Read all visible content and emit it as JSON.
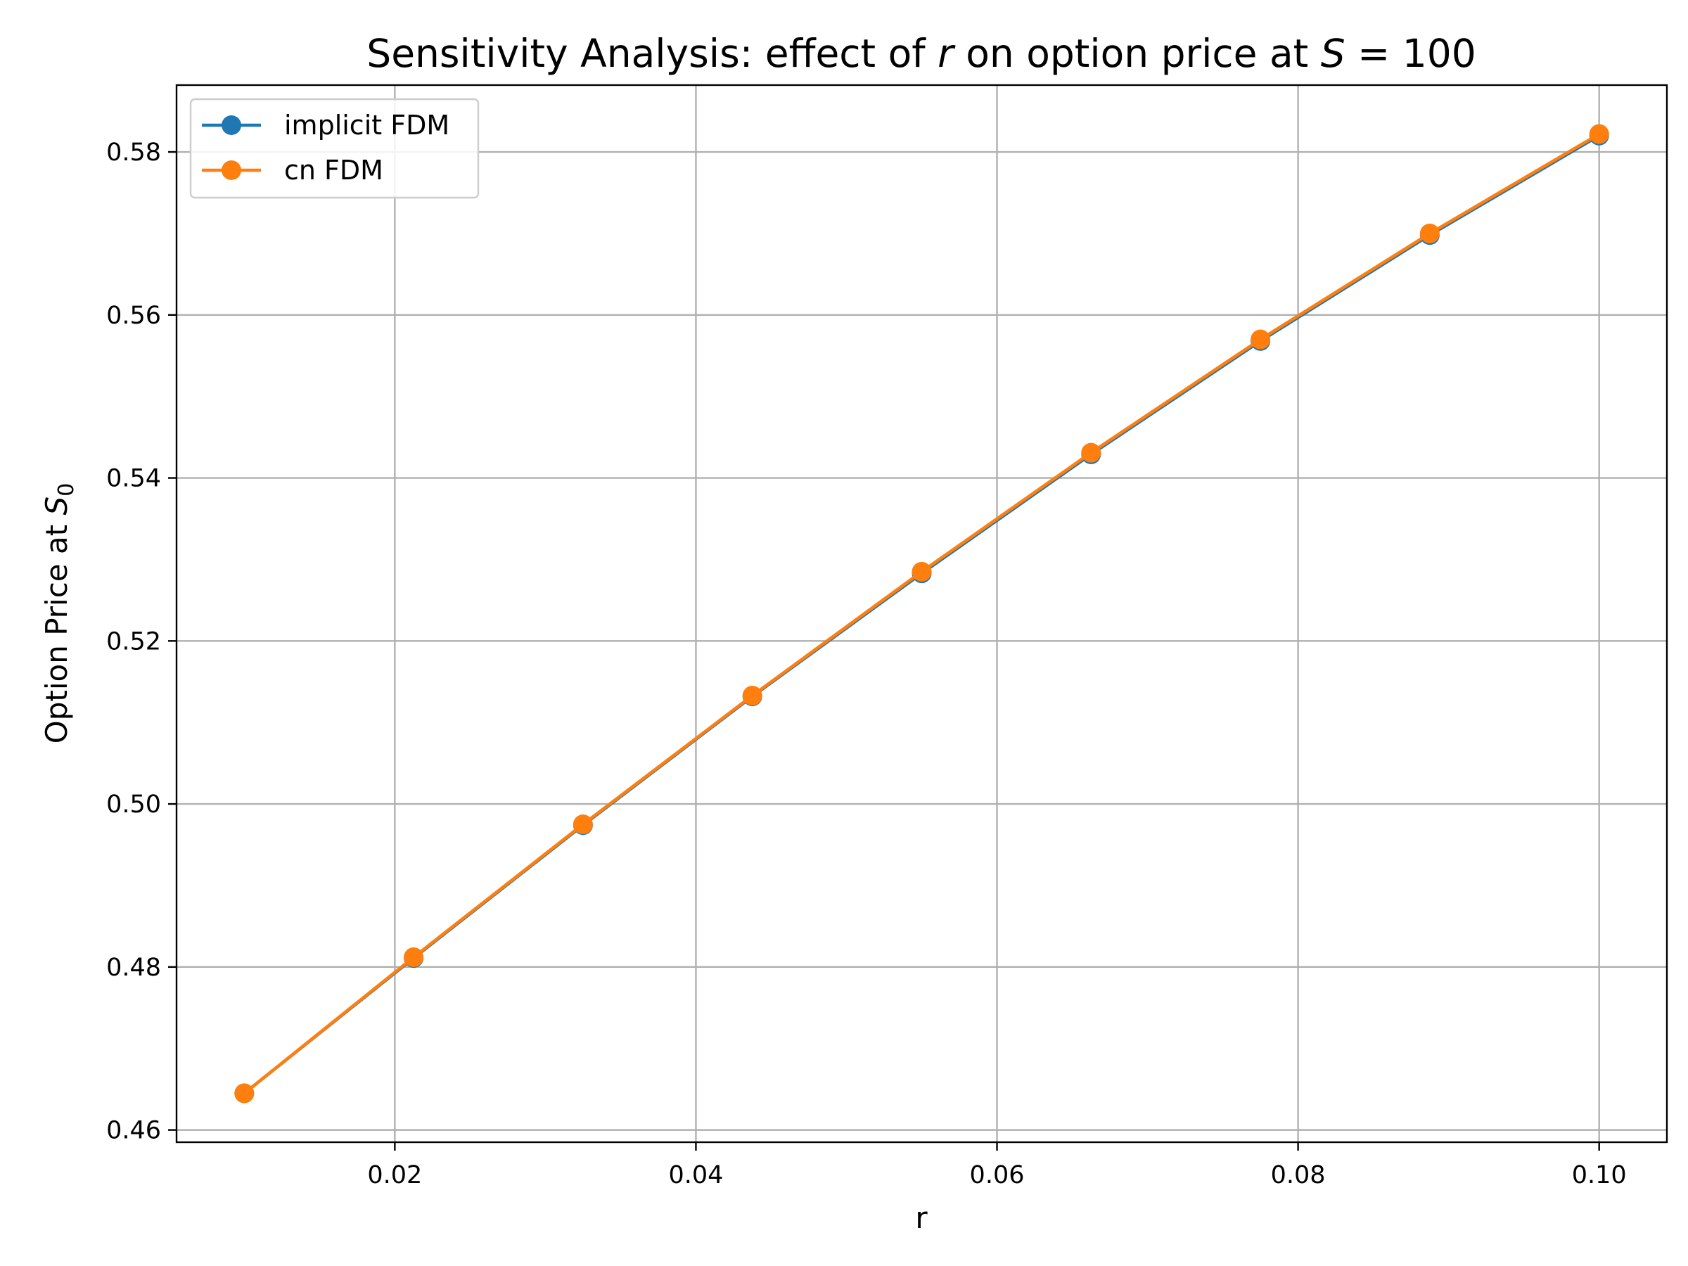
{
  "chart_data": {
    "type": "line",
    "title": {
      "prefix": "Sensitivity Analysis: effect of ",
      "var": "r",
      "middle": " on option price at ",
      "eq_var": "S",
      "eq_sign": " = ",
      "eq_val": "100"
    },
    "xlabel": "r",
    "ylabel": {
      "prefix": "Option Price at ",
      "var": "S",
      "sub": "0"
    },
    "xlim": [
      0.0055,
      0.1045
    ],
    "ylim": [
      0.4585,
      0.5882
    ],
    "xticks": [
      0.02,
      0.04,
      0.06,
      0.08,
      0.1
    ],
    "xtick_labels": [
      "0.02",
      "0.04",
      "0.06",
      "0.08",
      "0.10"
    ],
    "yticks": [
      0.46,
      0.48,
      0.5,
      0.52,
      0.54,
      0.56,
      0.58
    ],
    "ytick_labels": [
      "0.46",
      "0.48",
      "0.50",
      "0.52",
      "0.54",
      "0.56",
      "0.58"
    ],
    "grid": true,
    "legend_position": "top-left",
    "x": [
      0.01,
      0.02125,
      0.0325,
      0.04375,
      0.055,
      0.06625,
      0.0775,
      0.08875,
      0.1
    ],
    "series": [
      {
        "name": "implicit FDM",
        "color": "#1f77b4",
        "marker": "circle",
        "values": [
          0.4645,
          0.4811,
          0.4974,
          0.5132,
          0.5283,
          0.5429,
          0.5568,
          0.5698,
          0.582
        ]
      },
      {
        "name": "cn FDM",
        "color": "#ff7f0e",
        "marker": "circle",
        "values": [
          0.4645,
          0.4812,
          0.4975,
          0.5133,
          0.5285,
          0.5431,
          0.557,
          0.57,
          0.5822
        ]
      }
    ]
  }
}
